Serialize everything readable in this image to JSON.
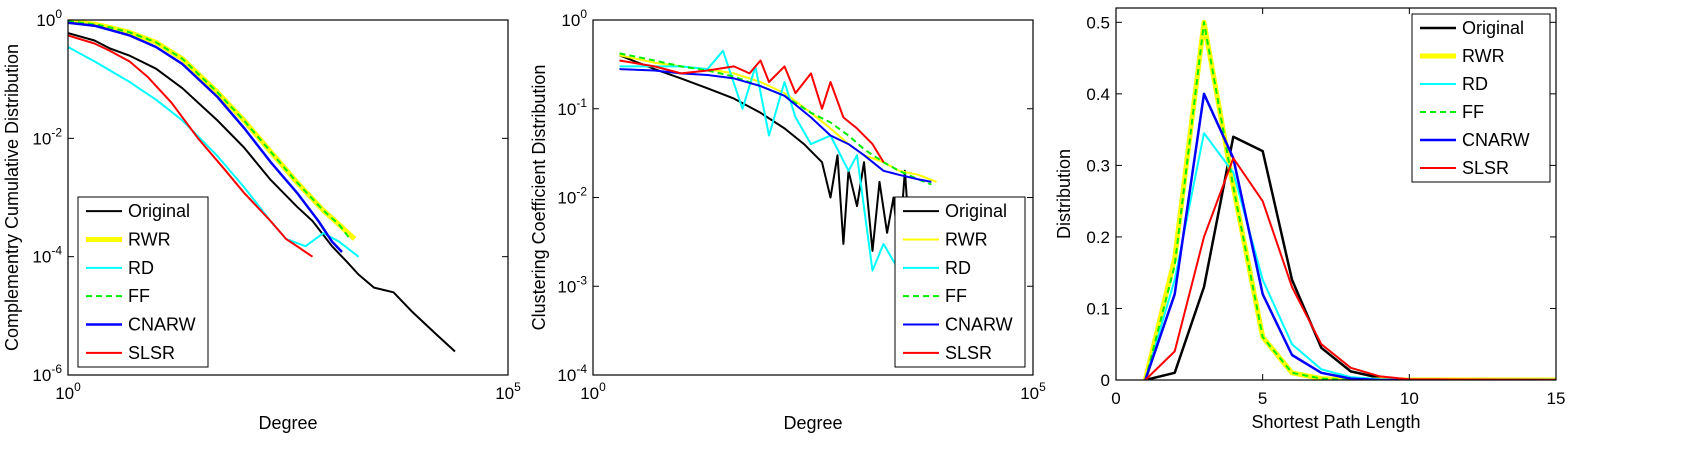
{
  "chart_data": [
    {
      "type": "line",
      "xlabel": "Degree",
      "ylabel": "Complementry Cumulative Distribution",
      "xscale": "log",
      "yscale": "log",
      "xlim": [
        1,
        100000
      ],
      "ylim": [
        1e-06,
        1
      ],
      "x_ticks": [
        {
          "base": "10",
          "exp": "0"
        },
        {
          "base": "10",
          "exp": "5"
        }
      ],
      "y_ticks": [
        {
          "base": "10",
          "exp": "0"
        },
        {
          "base": "10",
          "exp": "-2"
        },
        {
          "base": "10",
          "exp": "-4"
        },
        {
          "base": "10",
          "exp": "-6"
        }
      ],
      "legend_position": "bottom-left",
      "grid": false,
      "series": [
        {
          "name": "Original",
          "color": "#000000",
          "dash": "solid",
          "width": 2,
          "x": [
            1,
            2,
            3,
            5,
            10,
            20,
            50,
            100,
            200,
            400,
            600,
            1000,
            1500,
            2000,
            3000,
            5000,
            8000,
            15000,
            25000
          ],
          "y": [
            0.6,
            0.45,
            0.33,
            0.25,
            0.15,
            0.07,
            0.02,
            0.007,
            0.002,
            0.0007,
            0.0004,
            0.00015,
            8e-05,
            5e-05,
            3e-05,
            2.5e-05,
            1.2e-05,
            5e-06,
            2.5e-06
          ]
        },
        {
          "name": "RWR",
          "color": "#ffff00",
          "dash": "solid",
          "width": 5,
          "x": [
            1,
            2,
            3,
            5,
            10,
            20,
            50,
            100,
            200,
            400,
            800,
            1200,
            1800
          ],
          "y": [
            0.95,
            0.85,
            0.75,
            0.62,
            0.42,
            0.22,
            0.06,
            0.02,
            0.006,
            0.0018,
            0.0006,
            0.00035,
            0.0002
          ]
        },
        {
          "name": "RD",
          "color": "#00ffff",
          "dash": "solid",
          "width": 2,
          "x": [
            1,
            2,
            3,
            5,
            10,
            20,
            50,
            100,
            200,
            300,
            500,
            800,
            1200,
            2000
          ],
          "y": [
            0.35,
            0.2,
            0.14,
            0.09,
            0.045,
            0.02,
            0.005,
            0.0015,
            0.0004,
            0.0002,
            0.00015,
            0.00025,
            0.00018,
            0.0001
          ]
        },
        {
          "name": "FF",
          "color": "#00ee00",
          "dash": "dashed",
          "width": 2,
          "x": [
            1,
            2,
            3,
            5,
            10,
            20,
            50,
            100,
            200,
            400,
            800,
            1200,
            1600
          ],
          "y": [
            0.95,
            0.85,
            0.75,
            0.62,
            0.42,
            0.22,
            0.06,
            0.02,
            0.006,
            0.0018,
            0.0006,
            0.00035,
            0.0002
          ]
        },
        {
          "name": "CNARW",
          "color": "#0000ff",
          "dash": "solid",
          "width": 2.5,
          "x": [
            1,
            2,
            3,
            5,
            10,
            20,
            50,
            100,
            200,
            400,
            700,
            1000,
            1300
          ],
          "y": [
            0.9,
            0.8,
            0.68,
            0.55,
            0.35,
            0.18,
            0.05,
            0.015,
            0.004,
            0.0012,
            0.0004,
            0.00018,
            0.00012
          ]
        },
        {
          "name": "SLSR",
          "color": "#ff0000",
          "dash": "solid",
          "width": 2,
          "x": [
            1,
            2,
            3,
            5,
            8,
            15,
            30,
            60,
            100,
            200,
            300,
            400,
            500,
            600
          ],
          "y": [
            0.55,
            0.4,
            0.3,
            0.2,
            0.11,
            0.04,
            0.01,
            0.003,
            0.0012,
            0.0004,
            0.0002,
            0.00015,
            0.00012,
            0.0001
          ]
        }
      ]
    },
    {
      "type": "line",
      "xlabel": "Degree",
      "ylabel": "Clustering Coefficient Distribution",
      "xscale": "log",
      "yscale": "log",
      "xlim": [
        1,
        100000
      ],
      "ylim": [
        0.0001,
        1
      ],
      "x_ticks": [
        {
          "base": "10",
          "exp": "0"
        },
        {
          "base": "10",
          "exp": "5"
        }
      ],
      "y_ticks": [
        {
          "base": "10",
          "exp": "0"
        },
        {
          "base": "10",
          "exp": "-1"
        },
        {
          "base": "10",
          "exp": "-2"
        },
        {
          "base": "10",
          "exp": "-3"
        },
        {
          "base": "10",
          "exp": "-4"
        }
      ],
      "legend_position": "bottom-right",
      "grid": false,
      "series": [
        {
          "name": "Original",
          "color": "#000000",
          "dash": "solid",
          "width": 2,
          "x": [
            2,
            5,
            10,
            20,
            40,
            80,
            150,
            250,
            400,
            500,
            600,
            700,
            800,
            1000,
            1200,
            1500,
            1800,
            2200,
            2600,
            3000,
            3500,
            4000,
            5000,
            6000,
            8000,
            10000
          ],
          "y": [
            0.4,
            0.28,
            0.22,
            0.17,
            0.13,
            0.09,
            0.06,
            0.04,
            0.025,
            0.01,
            0.03,
            0.003,
            0.02,
            0.008,
            0.025,
            0.0025,
            0.015,
            0.004,
            0.01,
            0.0025,
            0.02,
            0.003,
            0.008,
            0.004,
            0.006,
            0.005
          ]
        },
        {
          "name": "RWR",
          "color": "#ffff00",
          "dash": "solid",
          "width": 2,
          "x": [
            2,
            5,
            10,
            20,
            40,
            80,
            150,
            300,
            500,
            800,
            1200,
            2000,
            3000,
            5000,
            8000
          ],
          "y": [
            0.4,
            0.33,
            0.3,
            0.28,
            0.25,
            0.2,
            0.15,
            0.09,
            0.06,
            0.04,
            0.03,
            0.025,
            0.02,
            0.018,
            0.015
          ]
        },
        {
          "name": "RD",
          "color": "#00ffff",
          "dash": "solid",
          "width": 2,
          "x": [
            2,
            5,
            10,
            20,
            30,
            50,
            70,
            100,
            150,
            200,
            300,
            500,
            800,
            1000,
            1500,
            2000,
            3000,
            5000,
            7000,
            10000
          ],
          "y": [
            0.3,
            0.3,
            0.3,
            0.28,
            0.45,
            0.1,
            0.3,
            0.05,
            0.2,
            0.08,
            0.04,
            0.05,
            0.02,
            0.03,
            0.0015,
            0.003,
            0.0015,
            0.002,
            0.0012,
            0.0025
          ]
        },
        {
          "name": "FF",
          "color": "#00ee00",
          "dash": "dashed",
          "width": 2,
          "x": [
            2,
            5,
            10,
            20,
            40,
            80,
            150,
            300,
            500,
            800,
            1200,
            2000,
            3000,
            5000,
            7000
          ],
          "y": [
            0.42,
            0.35,
            0.3,
            0.27,
            0.23,
            0.18,
            0.14,
            0.09,
            0.07,
            0.05,
            0.035,
            0.025,
            0.02,
            0.016,
            0.014
          ]
        },
        {
          "name": "CNARW",
          "color": "#0000ff",
          "dash": "solid",
          "width": 2,
          "x": [
            2,
            5,
            10,
            20,
            40,
            80,
            150,
            300,
            500,
            800,
            1200,
            2000,
            3000,
            5000,
            7000
          ],
          "y": [
            0.28,
            0.27,
            0.25,
            0.24,
            0.22,
            0.18,
            0.14,
            0.08,
            0.05,
            0.04,
            0.03,
            0.02,
            0.018,
            0.016,
            0.015
          ]
        },
        {
          "name": "SLSR",
          "color": "#ff0000",
          "dash": "solid",
          "width": 2,
          "x": [
            2,
            5,
            10,
            20,
            40,
            60,
            80,
            100,
            150,
            200,
            300,
            400,
            500,
            700,
            1000,
            1500,
            2000
          ],
          "y": [
            0.35,
            0.3,
            0.25,
            0.27,
            0.3,
            0.25,
            0.35,
            0.2,
            0.3,
            0.15,
            0.25,
            0.1,
            0.2,
            0.08,
            0.06,
            0.04,
            0.025
          ]
        }
      ]
    },
    {
      "type": "line",
      "xlabel": "Shortest Path Length",
      "ylabel": "Distribution",
      "xscale": "linear",
      "yscale": "linear",
      "xlim": [
        0,
        15
      ],
      "ylim": [
        0,
        0.52
      ],
      "x_ticks": [
        "0",
        "5",
        "10",
        "15"
      ],
      "y_ticks": [
        "0",
        "0.1",
        "0.2",
        "0.3",
        "0.4",
        "0.5"
      ],
      "legend_position": "top-right",
      "grid": false,
      "series": [
        {
          "name": "Original",
          "color": "#000000",
          "dash": "solid",
          "width": 2.5,
          "x": [
            1,
            2,
            3,
            4,
            5,
            6,
            7,
            8,
            9,
            10,
            15
          ],
          "y": [
            0,
            0.01,
            0.13,
            0.34,
            0.32,
            0.14,
            0.045,
            0.012,
            0.003,
            0.001,
            0
          ]
        },
        {
          "name": "RWR",
          "color": "#ffff00",
          "dash": "solid",
          "width": 5,
          "x": [
            1,
            2,
            3,
            4,
            5,
            6,
            7,
            8,
            9,
            10,
            15
          ],
          "y": [
            0,
            0.17,
            0.5,
            0.27,
            0.06,
            0.01,
            0.002,
            0,
            0,
            0,
            0
          ]
        },
        {
          "name": "RD",
          "color": "#00ffff",
          "dash": "solid",
          "width": 2,
          "x": [
            1,
            2,
            3,
            4,
            5,
            6,
            7,
            8,
            9,
            10,
            15
          ],
          "y": [
            0,
            0.14,
            0.345,
            0.29,
            0.14,
            0.05,
            0.015,
            0.004,
            0.001,
            0,
            0
          ]
        },
        {
          "name": "FF",
          "color": "#00ee00",
          "dash": "dashed",
          "width": 2,
          "x": [
            1,
            2,
            3,
            4,
            5,
            6,
            7,
            8,
            9,
            10,
            15
          ],
          "y": [
            0,
            0.16,
            0.5,
            0.27,
            0.06,
            0.01,
            0.002,
            0,
            0,
            0,
            0
          ]
        },
        {
          "name": "CNARW",
          "color": "#0000ff",
          "dash": "solid",
          "width": 2.5,
          "x": [
            1,
            2,
            3,
            4,
            5,
            6,
            7,
            8,
            9,
            10,
            15
          ],
          "y": [
            0,
            0.12,
            0.4,
            0.31,
            0.12,
            0.035,
            0.01,
            0.002,
            0,
            0,
            0
          ]
        },
        {
          "name": "SLSR",
          "color": "#ff0000",
          "dash": "solid",
          "width": 2,
          "x": [
            1,
            2,
            3,
            4,
            5,
            6,
            7,
            8,
            9,
            10,
            15
          ],
          "y": [
            0,
            0.04,
            0.2,
            0.31,
            0.25,
            0.13,
            0.05,
            0.017,
            0.005,
            0.001,
            0
          ]
        }
      ]
    }
  ]
}
